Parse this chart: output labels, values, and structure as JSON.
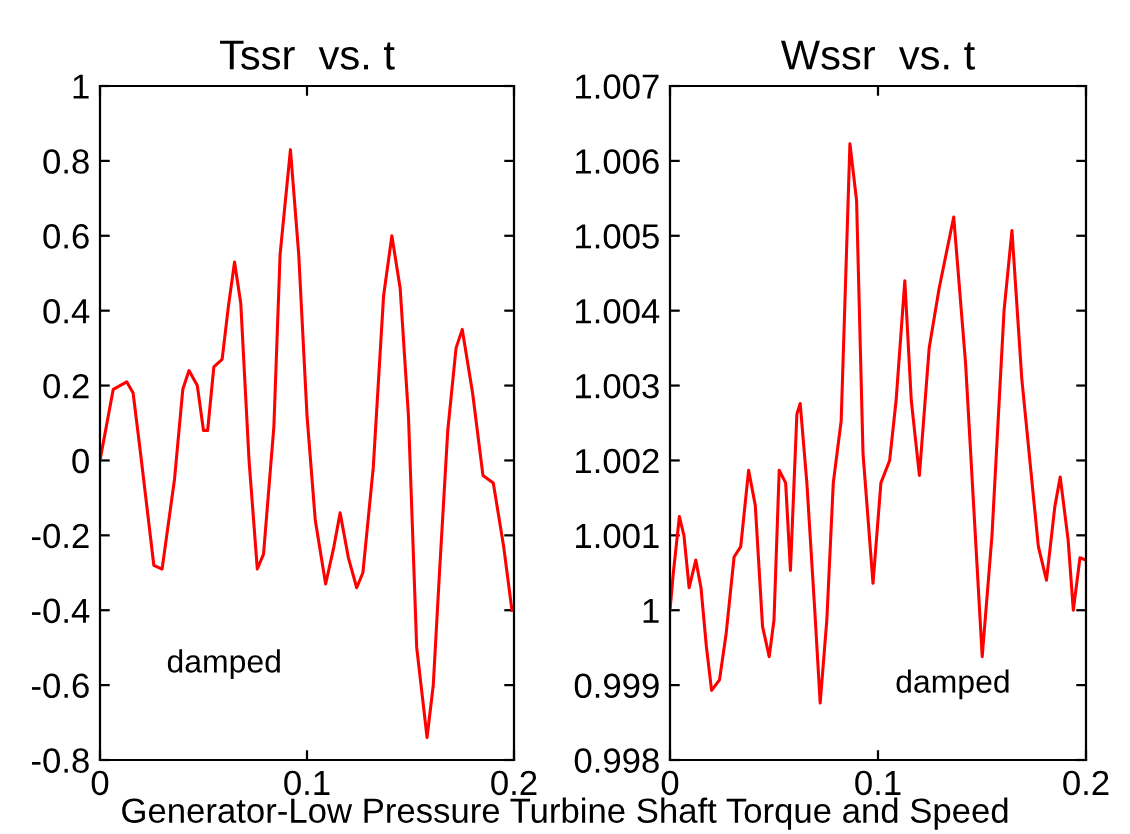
{
  "chart_data": [
    {
      "type": "line",
      "title": "Tssr  vs. t",
      "x": [
        0,
        0.0064,
        0.0129,
        0.016,
        0.02,
        0.026,
        0.03,
        0.036,
        0.04,
        0.043,
        0.047,
        0.05,
        0.052,
        0.055,
        0.059,
        0.062,
        0.065,
        0.068,
        0.072,
        0.076,
        0.079,
        0.084,
        0.087,
        0.092,
        0.096,
        0.1,
        0.104,
        0.109,
        0.113,
        0.116,
        0.12,
        0.124,
        0.127,
        0.132,
        0.137,
        0.141,
        0.145,
        0.149,
        0.153,
        0.158,
        0.161,
        0.164,
        0.168,
        0.172,
        0.175,
        0.18,
        0.185,
        0.19,
        0.195,
        0.199
      ],
      "series": [
        {
          "color": "#ff0000",
          "values": [
            0,
            0.19,
            0.21,
            0.18,
            0,
            -0.28,
            -0.29,
            -0.05,
            0.19,
            0.24,
            0.2,
            0.08,
            0.08,
            0.25,
            0.27,
            0.41,
            0.53,
            0.42,
            0,
            -0.29,
            -0.25,
            0.09,
            0.55,
            0.83,
            0.55,
            0.12,
            -0.16,
            -0.33,
            -0.23,
            -0.14,
            -0.26,
            -0.34,
            -0.3,
            -0.02,
            0.44,
            0.6,
            0.46,
            0.12,
            -0.5,
            -0.74,
            -0.6,
            -0.3,
            0.08,
            0.3,
            0.35,
            0.18,
            -0.04,
            -0.06,
            -0.23,
            -0.4
          ]
        }
      ],
      "xlim": [
        0,
        0.2
      ],
      "xticks": [
        0,
        0.1,
        0.2
      ],
      "ylim": [
        -0.8,
        1
      ],
      "yticks": [
        -0.8,
        -0.6,
        -0.4,
        -0.2,
        0,
        0.2,
        0.4,
        0.6,
        0.8,
        1
      ],
      "grid": false,
      "annotations": [
        "damped",
        "Generator-Low Pressure Turbine Shaft Torque and Speed"
      ]
    },
    {
      "type": "line",
      "title": "Wssr  vs. t",
      "x": [
        0,
        0.0016,
        0.0045,
        0.0067,
        0.0092,
        0.0124,
        0.0149,
        0.0175,
        0.02,
        0.0238,
        0.027,
        0.0308,
        0.034,
        0.0378,
        0.041,
        0.0445,
        0.0477,
        0.05,
        0.0525,
        0.0556,
        0.0579,
        0.061,
        0.0626,
        0.0658,
        0.0696,
        0.0722,
        0.0754,
        0.0785,
        0.0823,
        0.0865,
        0.0897,
        0.0928,
        0.0976,
        0.1014,
        0.1056,
        0.1087,
        0.1129,
        0.116,
        0.1199,
        0.1246,
        0.1294,
        0.1364,
        0.1421,
        0.1501,
        0.1548,
        0.1606,
        0.1644,
        0.1691,
        0.1771,
        0.181,
        0.185,
        0.1876,
        0.1914,
        0.1939,
        0.1971,
        0.2
      ],
      "series": [
        {
          "color": "#ff0000",
          "values": [
            1.0,
            1.0005,
            1.00125,
            1.001,
            1.0003,
            1.00067,
            1.0003,
            0.99951,
            0.99893,
            0.99907,
            0.99969,
            1.00071,
            1.00085,
            1.00187,
            1.0014,
            0.99978,
            0.99938,
            0.99987,
            1.00187,
            1.0017,
            1.00053,
            1.00262,
            1.00276,
            1.0017,
            1.0,
            0.99876,
            0.99987,
            1.0017,
            1.00253,
            1.00623,
            1.00547,
            1.00209,
            1.00036,
            1.0017,
            1.002,
            1.0028,
            1.0044,
            1.0028,
            1.0018,
            1.0035,
            1.0043,
            1.00525,
            1.0033,
            0.99938,
            1.001,
            1.004,
            1.00507,
            1.0031,
            1.00085,
            1.0004,
            1.00138,
            1.00178,
            1.00094,
            1.0,
            1.0007,
            1.00067
          ]
        }
      ],
      "xlim": [
        0,
        0.2
      ],
      "xticks": [
        0,
        0.1,
        0.2
      ],
      "ylim": [
        0.998,
        1.007
      ],
      "yticks": [
        0.998,
        0.999,
        1,
        1.001,
        1.002,
        1.003,
        1.004,
        1.005,
        1.006,
        1.007
      ],
      "grid": false,
      "annotations": [
        "damped"
      ]
    }
  ]
}
